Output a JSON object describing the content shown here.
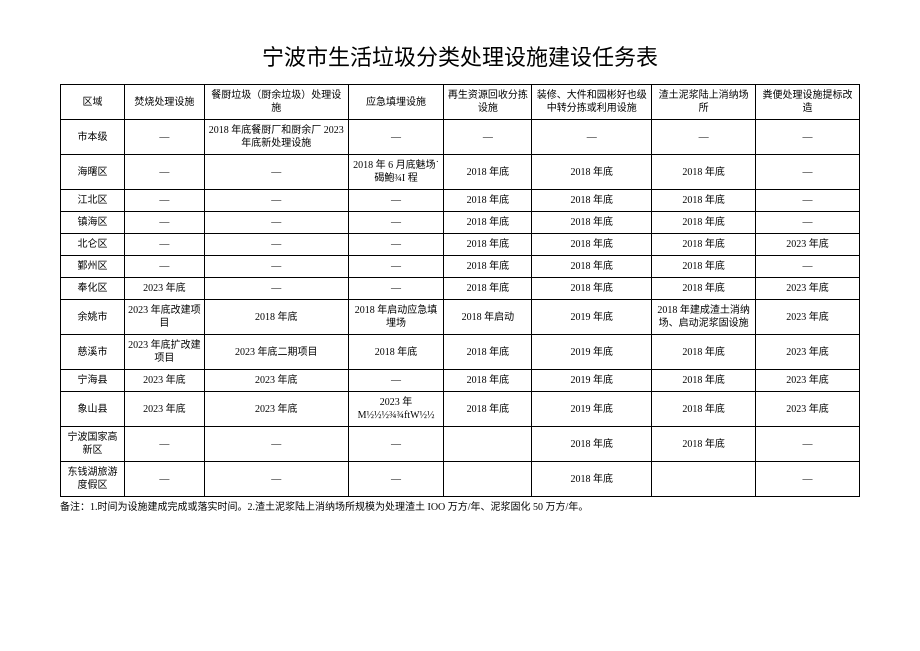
{
  "title": "宁波市生活垃圾分类处理设施建设任务表",
  "headers": {
    "region": "区域",
    "c1": "焚烧处理设施",
    "c2": "餐厨垃圾（厨余垃圾）处理设施",
    "c3": "应急填埋设施",
    "c4": "再生资源回收分拣设施",
    "c5": "装修、大件和园彬好也级中转分拣或利用设施",
    "c6": "渣土泥浆陆上消纳场所",
    "c7": "粪便处理设施提标改造"
  },
  "rows": [
    {
      "region": "市本级",
      "c1": "—",
      "c2": "2018 年底餐厨厂和厨余厂 2023 年底新处理设施",
      "c3": "—",
      "c4": "—",
      "c5": "—",
      "c6": "—",
      "c7": "—"
    },
    {
      "region": "海曙区",
      "c1": "—",
      "c2": "—",
      "c3": "2018 年 6 月底魅场˙碣鮑¾I 程",
      "c4": "2018 年底",
      "c5": "2018 年底",
      "c6": "2018 年底",
      "c7": "—"
    },
    {
      "region": "江北区",
      "c1": "—",
      "c2": "—",
      "c3": "—",
      "c4": "2018 年底",
      "c5": "2018 年底",
      "c6": "2018 年底",
      "c7": "—"
    },
    {
      "region": "镇海区",
      "c1": "—",
      "c2": "—",
      "c3": "—",
      "c4": "2018 年底",
      "c5": "2018 年底",
      "c6": "2018 年底",
      "c7": "—"
    },
    {
      "region": "北仑区",
      "c1": "—",
      "c2": "—",
      "c3": "—",
      "c4": "2018 年底",
      "c5": "2018 年底",
      "c6": "2018 年底",
      "c7": "2023 年底"
    },
    {
      "region": "鄞州区",
      "c1": "—",
      "c2": "—",
      "c3": "—",
      "c4": "2018 年底",
      "c5": "2018 年底",
      "c6": "2018 年底",
      "c7": "—"
    },
    {
      "region": "奉化区",
      "c1": "2023 年底",
      "c2": "—",
      "c3": "—",
      "c4": "2018 年底",
      "c5": "2018 年底",
      "c6": "2018 年底",
      "c7": "2023 年底"
    },
    {
      "region": "余姚市",
      "c1": "2023 年底改建项目",
      "c2": "2018 年底",
      "c3": "2018 年启动应急填埋场",
      "c4": "2018 年启动",
      "c5": "2019 年底",
      "c6": "2018 年建成渣土消纳场、启动泥浆固设施",
      "c7": "2023 年底"
    },
    {
      "region": "慈溪市",
      "c1": "2023 年底扩改建项目",
      "c2": "2023 年底二期项目",
      "c3": "2018 年底",
      "c4": "2018 年底",
      "c5": "2019 年底",
      "c6": "2018 年底",
      "c7": "2023 年底"
    },
    {
      "region": "宁海县",
      "c1": "2023 年底",
      "c2": "2023 年底",
      "c3": "—",
      "c4": "2018 年底",
      "c5": "2019 年底",
      "c6": "2018 年底",
      "c7": "2023 年底"
    },
    {
      "region": "象山县",
      "c1": "2023 年底",
      "c2": "2023 年底",
      "c3": "2023 年M½½½¾¾ftW½½",
      "c4": "2018 年底",
      "c5": "2019 年底",
      "c6": "2018 年底",
      "c7": "2023 年底"
    },
    {
      "region": "宁波国家高新区",
      "c1": "—",
      "c2": "—",
      "c3": "—",
      "c4": "",
      "c5": "2018 年底",
      "c6": "2018 年底",
      "c7": "—"
    },
    {
      "region": "东钱湖旅游度假区",
      "c1": "—",
      "c2": "—",
      "c3": "—",
      "c4": "",
      "c5": "2018 年底",
      "c6": "",
      "c7": "—"
    }
  ],
  "footnote": "备注：1.时间为设施建成完成或落实时间。2.渣土泥浆陆上消纳场所规模为处理渣土 IOO 万方/年、泥浆固化 50 万方/年。"
}
